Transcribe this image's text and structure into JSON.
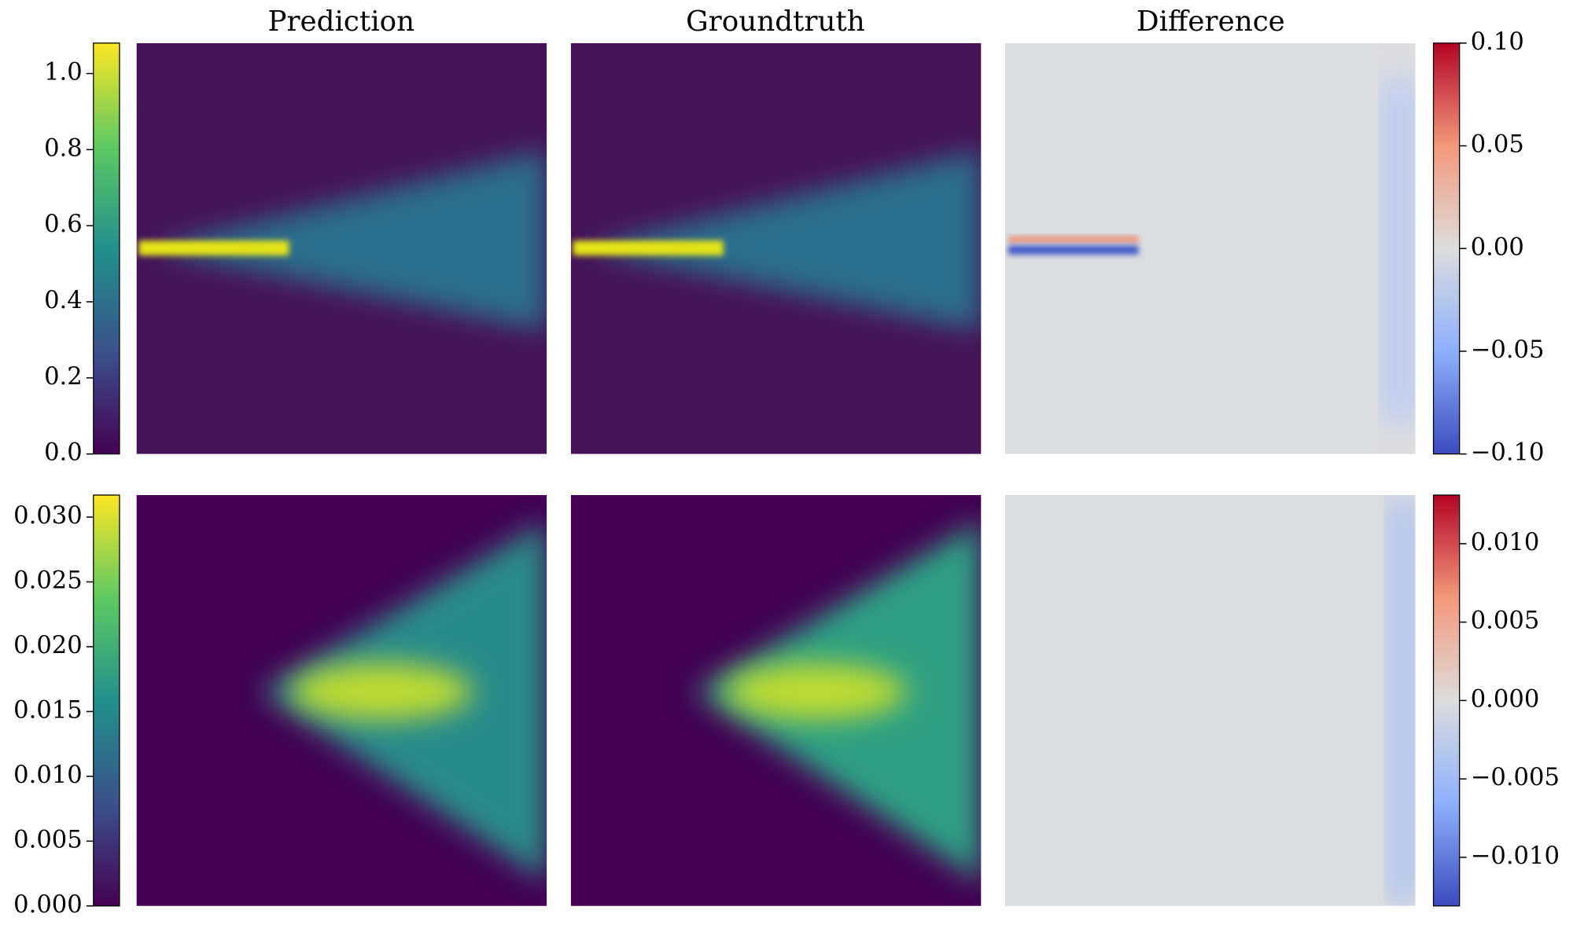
{
  "column_titles": [
    "Prediction",
    "Groundtruth",
    "Difference"
  ],
  "chart_data": [
    {
      "type": "colorbar",
      "colormap": "viridis",
      "tick_side": "left",
      "ylim": [
        0,
        1.08
      ],
      "yticks": [
        {
          "value": 0,
          "label": "0.0"
        },
        0.2,
        0.4,
        0.6,
        0.8,
        {
          "value": 1,
          "label": "1.0"
        }
      ]
    },
    {
      "type": "colorbar",
      "colormap": "coolwarm",
      "tick_side": "right",
      "ylim": [
        -0.1,
        0.1
      ],
      "yticks": [
        {
          "value": -0.1,
          "label": "−0.10"
        },
        {
          "value": -0.05,
          "label": "−0.05"
        },
        {
          "value": 0,
          "label": "0.00"
        },
        0.05,
        {
          "value": 0.1,
          "label": "0.10"
        }
      ]
    },
    {
      "type": "colorbar",
      "colormap": "viridis",
      "tick_side": "left",
      "ylim": [
        0,
        0.0317
      ],
      "yticks": [
        {
          "value": 0,
          "label": "0.000"
        },
        0.005,
        {
          "value": 0.01,
          "label": "0.010"
        },
        0.015,
        {
          "value": 0.02,
          "label": "0.020"
        },
        0.025,
        {
          "value": 0.03,
          "label": "0.030"
        }
      ]
    },
    {
      "type": "colorbar",
      "colormap": "coolwarm",
      "tick_side": "right",
      "ylim": [
        -0.0131,
        0.0131
      ],
      "yticks": [
        {
          "value": -0.01,
          "label": "−0.010"
        },
        {
          "value": -0.005,
          "label": "−0.005"
        },
        {
          "value": 0,
          "label": "0.000"
        },
        0.005,
        {
          "value": 0.01,
          "label": "0.010"
        }
      ]
    }
  ]
}
